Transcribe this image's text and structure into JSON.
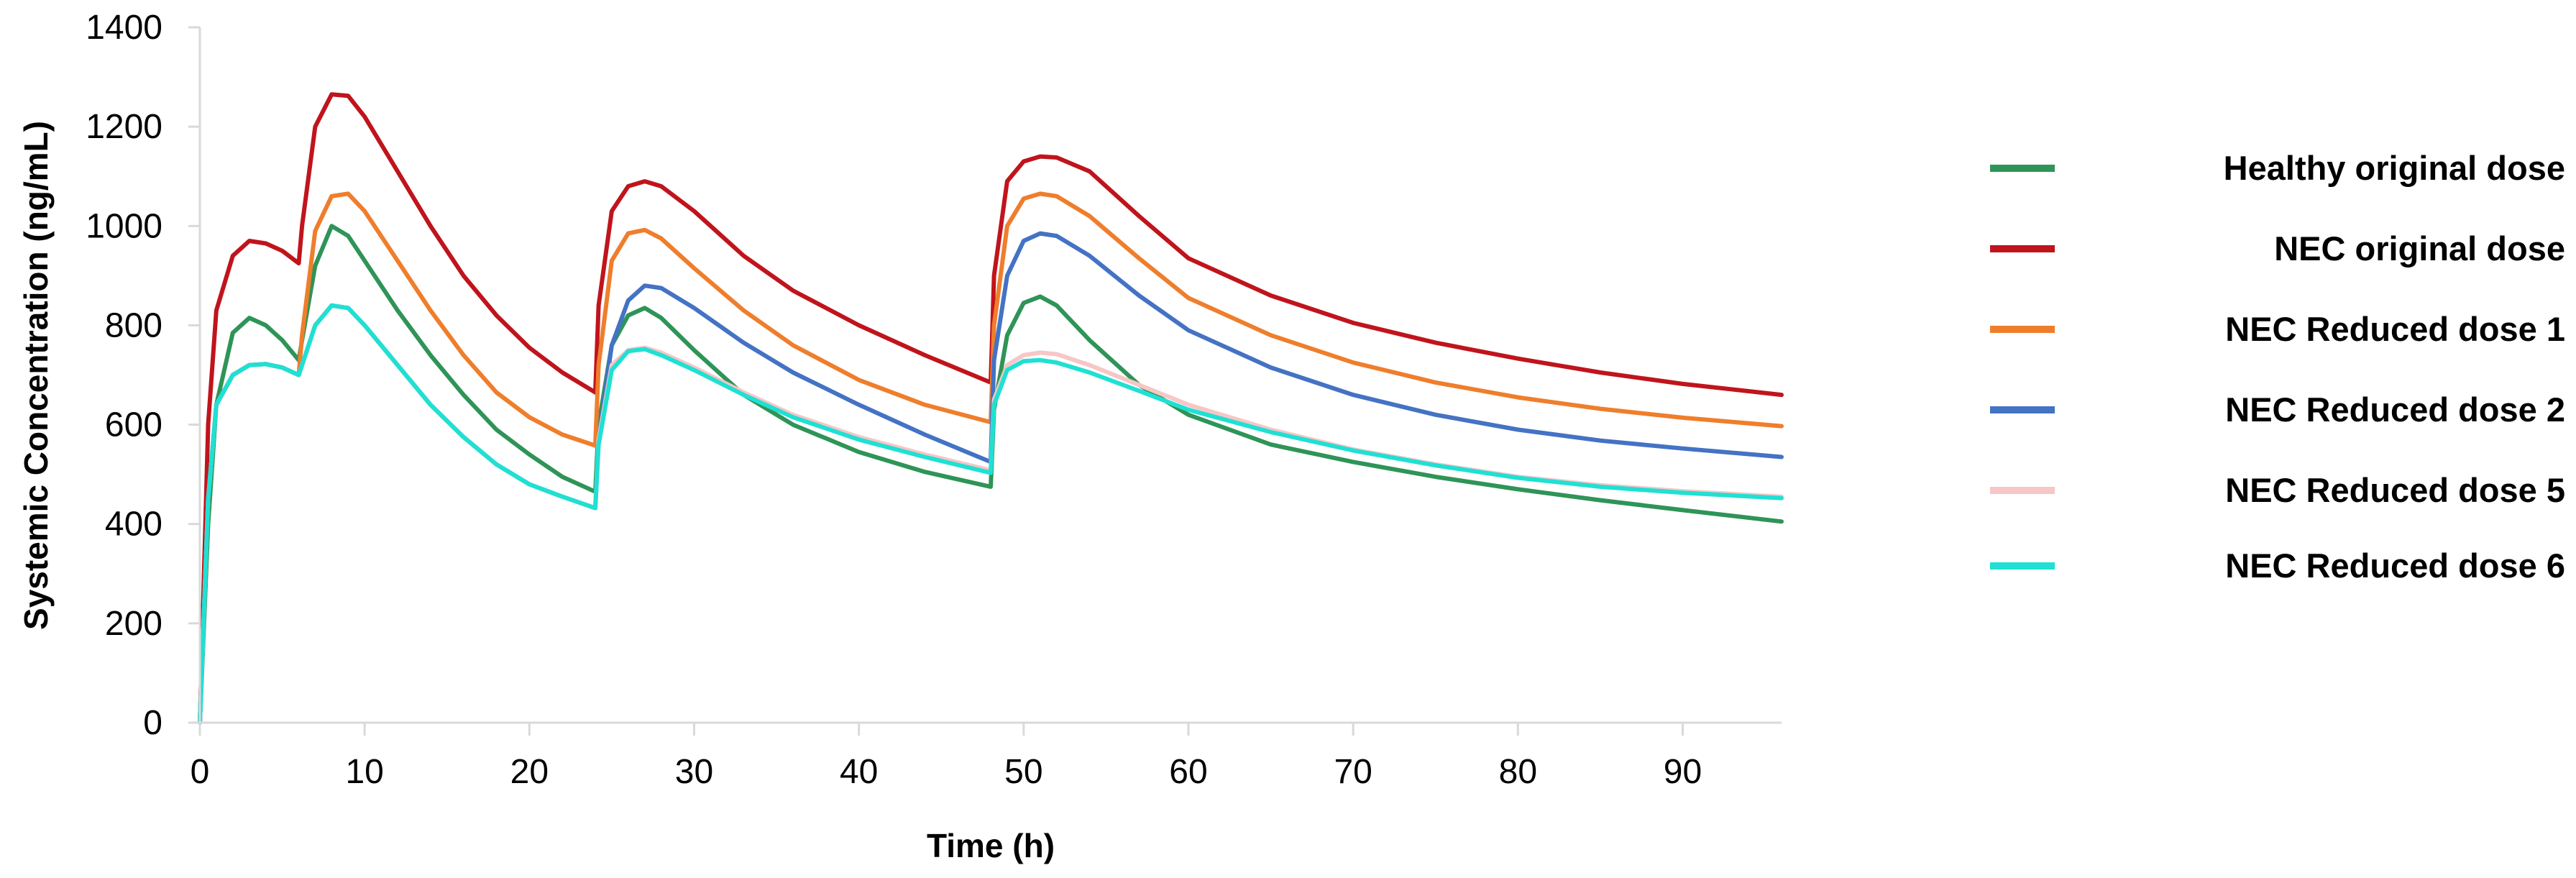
{
  "chart_data": {
    "type": "line",
    "title": "",
    "xlabel": "Time (h)",
    "ylabel": "Systemic Concentration (ng/mL)",
    "xlim": [
      0,
      96
    ],
    "ylim": [
      0,
      1400
    ],
    "xticks": [
      0,
      10,
      20,
      30,
      40,
      50,
      60,
      70,
      80,
      90
    ],
    "yticks": [
      0,
      200,
      400,
      600,
      800,
      1000,
      1200,
      1400
    ],
    "grid": false,
    "legend_position": "right",
    "series": [
      {
        "name": "Healthy original dose",
        "color": "#2e9457",
        "x": [
          0,
          0.5,
          1,
          2,
          3,
          4,
          5,
          6,
          6.2,
          7,
          8,
          9,
          10,
          12,
          14,
          16,
          18,
          20,
          22,
          24,
          24.2,
          25,
          26,
          27,
          28,
          30,
          33,
          36,
          40,
          44,
          48,
          48.2,
          49,
          50,
          51,
          52,
          54,
          57,
          60,
          65,
          70,
          75,
          80,
          85,
          90,
          96
        ],
        "y": [
          0,
          400,
          640,
          785,
          815,
          800,
          770,
          730,
          770,
          920,
          1000,
          980,
          930,
          830,
          740,
          660,
          590,
          540,
          495,
          465,
          600,
          760,
          820,
          835,
          815,
          750,
          660,
          600,
          545,
          505,
          475,
          630,
          780,
          845,
          858,
          840,
          770,
          680,
          620,
          560,
          525,
          495,
          470,
          448,
          428,
          405
        ]
      },
      {
        "name": "NEC original dose",
        "color": "#c0141c",
        "x": [
          0,
          0.5,
          1,
          2,
          3,
          4,
          5,
          6,
          6.2,
          7,
          8,
          9,
          10,
          12,
          14,
          16,
          18,
          20,
          22,
          24,
          24.2,
          25,
          26,
          27,
          28,
          30,
          33,
          36,
          40,
          44,
          48,
          48.2,
          49,
          50,
          51,
          52,
          54,
          57,
          60,
          65,
          70,
          75,
          80,
          85,
          90,
          96
        ],
        "y": [
          0,
          600,
          830,
          940,
          970,
          965,
          950,
          925,
          1000,
          1200,
          1265,
          1262,
          1220,
          1110,
          1000,
          900,
          820,
          755,
          705,
          665,
          840,
          1030,
          1080,
          1090,
          1080,
          1030,
          940,
          870,
          800,
          740,
          685,
          900,
          1090,
          1130,
          1140,
          1138,
          1110,
          1020,
          935,
          860,
          805,
          765,
          733,
          705,
          682,
          660
        ]
      },
      {
        "name": "NEC Reduced dose 1",
        "color": "#ef7e2c",
        "x": [
          0,
          0.5,
          1,
          2,
          3,
          4,
          5,
          6,
          6.2,
          7,
          8,
          9,
          10,
          12,
          14,
          16,
          18,
          20,
          22,
          24,
          24.2,
          25,
          26,
          27,
          28,
          30,
          33,
          36,
          40,
          44,
          48,
          48.2,
          49,
          50,
          51,
          52,
          54,
          57,
          60,
          65,
          70,
          75,
          80,
          85,
          90,
          96
        ],
        "y": [
          0,
          450,
          640,
          700,
          720,
          722,
          715,
          700,
          780,
          990,
          1060,
          1065,
          1030,
          930,
          830,
          740,
          665,
          615,
          580,
          558,
          720,
          930,
          985,
          992,
          975,
          915,
          830,
          760,
          690,
          640,
          605,
          800,
          1000,
          1055,
          1065,
          1060,
          1020,
          935,
          855,
          780,
          725,
          685,
          655,
          632,
          614,
          597
        ]
      },
      {
        "name": "NEC Reduced dose 2",
        "color": "#4472c4",
        "x": [
          0,
          0.5,
          1,
          2,
          3,
          4,
          5,
          6,
          6.2,
          7,
          8,
          9,
          10,
          12,
          14,
          16,
          18,
          20,
          22,
          24,
          24.2,
          25,
          26,
          27,
          28,
          30,
          33,
          36,
          40,
          44,
          48,
          48.2,
          49,
          50,
          51,
          52,
          54,
          57,
          60,
          65,
          70,
          75,
          80,
          85,
          90,
          96
        ],
        "y": [
          0,
          450,
          640,
          700,
          720,
          722,
          715,
          700,
          720,
          800,
          840,
          835,
          800,
          720,
          640,
          575,
          520,
          480,
          455,
          432,
          570,
          760,
          850,
          880,
          875,
          835,
          765,
          705,
          640,
          580,
          525,
          730,
          900,
          970,
          985,
          980,
          940,
          860,
          790,
          715,
          660,
          620,
          590,
          568,
          552,
          535
        ]
      },
      {
        "name": "NEC Reduced dose 5",
        "color": "#f7c6c6",
        "x": [
          0,
          0.5,
          1,
          2,
          3,
          4,
          5,
          6,
          6.2,
          7,
          8,
          9,
          10,
          12,
          14,
          16,
          18,
          20,
          22,
          24,
          24.2,
          25,
          26,
          27,
          28,
          30,
          33,
          36,
          40,
          44,
          48,
          48.2,
          49,
          50,
          51,
          52,
          54,
          57,
          60,
          65,
          70,
          75,
          80,
          85,
          90,
          96
        ],
        "y": [
          0,
          450,
          640,
          700,
          720,
          722,
          715,
          700,
          720,
          800,
          840,
          835,
          800,
          720,
          640,
          575,
          520,
          480,
          455,
          432,
          570,
          720,
          750,
          755,
          745,
          715,
          665,
          620,
          575,
          540,
          508,
          650,
          720,
          740,
          745,
          742,
          720,
          680,
          640,
          590,
          550,
          520,
          495,
          478,
          466,
          455
        ]
      },
      {
        "name": "NEC Reduced dose 6",
        "color": "#1fe0d3",
        "x": [
          0,
          0.5,
          1,
          2,
          3,
          4,
          5,
          6,
          6.2,
          7,
          8,
          9,
          10,
          12,
          14,
          16,
          18,
          20,
          22,
          24,
          24.2,
          25,
          26,
          27,
          28,
          30,
          33,
          36,
          40,
          44,
          48,
          48.2,
          49,
          50,
          51,
          52,
          54,
          57,
          60,
          65,
          70,
          75,
          80,
          85,
          90,
          96
        ],
        "y": [
          0,
          450,
          640,
          700,
          720,
          722,
          715,
          700,
          720,
          800,
          840,
          835,
          800,
          720,
          640,
          575,
          520,
          480,
          455,
          432,
          560,
          710,
          748,
          752,
          740,
          710,
          660,
          615,
          570,
          535,
          503,
          640,
          710,
          728,
          730,
          725,
          705,
          668,
          630,
          585,
          548,
          518,
          493,
          475,
          463,
          452
        ]
      }
    ]
  }
}
